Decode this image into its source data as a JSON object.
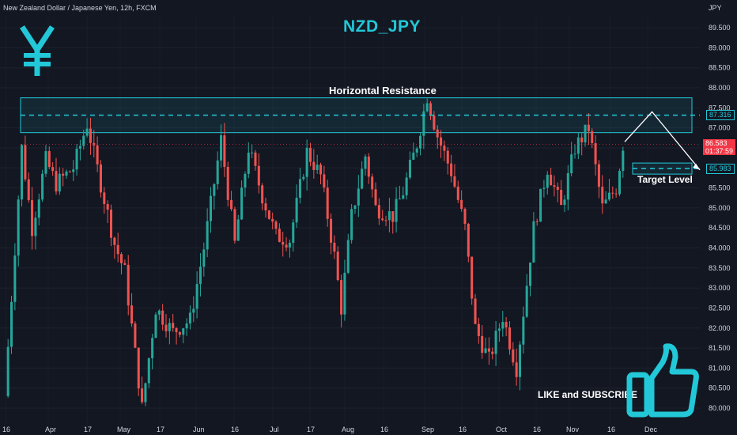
{
  "header": {
    "symbol_info": "New Zealand Dollar / Japanese Yen, 12h, FXCM",
    "currency": "JPY"
  },
  "branding": {
    "title": "NZD_JPY",
    "yen_icon": "yen-sign-icon",
    "thumb_icon": "thumbs-up-icon",
    "accent_color": "#22c8d8"
  },
  "chart_data": {
    "type": "candlestick",
    "symbol": "NZD/JPY",
    "timeframe": "12h",
    "source": "FXCM",
    "ylim": [
      79.75,
      89.75
    ],
    "y_ticks": [
      "80.000",
      "80.500",
      "81.000",
      "81.500",
      "82.000",
      "82.500",
      "83.000",
      "83.500",
      "84.000",
      "84.500",
      "85.000",
      "85.500",
      "86.000",
      "86.500",
      "87.000",
      "87.500",
      "88.000",
      "88.500",
      "89.000",
      "89.500"
    ],
    "x_ticks": [
      "16",
      "Apr",
      "17",
      "May",
      "17",
      "Jun",
      "16",
      "Jul",
      "17",
      "Aug",
      "16",
      "Sep",
      "16",
      "Oct",
      "16",
      "Nov",
      "16",
      "Dec"
    ],
    "bull_color": "#26a69a",
    "bear_color": "#ef5350",
    "price_path": [
      [
        0,
        80.3
      ],
      [
        3,
        84.0
      ],
      [
        5,
        86.5
      ],
      [
        8,
        84.5
      ],
      [
        12,
        86.2
      ],
      [
        15,
        85.6
      ],
      [
        20,
        86.0
      ],
      [
        24,
        87.1
      ],
      [
        28,
        85.6
      ],
      [
        32,
        84.1
      ],
      [
        35,
        83.4
      ],
      [
        40,
        80.0
      ],
      [
        44,
        82.5
      ],
      [
        49,
        81.9
      ],
      [
        54,
        82.2
      ],
      [
        58,
        84.0
      ],
      [
        63,
        86.7
      ],
      [
        67,
        84.1
      ],
      [
        71,
        86.5
      ],
      [
        75,
        85.3
      ],
      [
        79,
        84.3
      ],
      [
        83,
        84.2
      ],
      [
        88,
        86.4
      ],
      [
        92,
        85.8
      ],
      [
        96,
        83.8
      ],
      [
        98,
        82.5
      ],
      [
        101,
        84.8
      ],
      [
        105,
        86.3
      ],
      [
        108,
        85.0
      ],
      [
        113,
        84.8
      ],
      [
        116,
        85.4
      ],
      [
        120,
        86.6
      ],
      [
        123,
        87.8
      ],
      [
        126,
        86.8
      ],
      [
        130,
        85.9
      ],
      [
        134,
        84.5
      ],
      [
        137,
        82.0
      ],
      [
        141,
        81.2
      ],
      [
        145,
        82.3
      ],
      [
        149,
        81.0
      ],
      [
        154,
        84.5
      ],
      [
        158,
        86.0
      ],
      [
        162,
        85.0
      ],
      [
        166,
        86.5
      ],
      [
        170,
        87.0
      ],
      [
        174,
        85.0
      ],
      [
        178,
        85.5
      ],
      [
        180,
        86.58
      ]
    ],
    "price_line": {
      "value": 87.316,
      "label": "87.316"
    },
    "target_line": {
      "value": 85.983,
      "label": "85.983"
    },
    "last_price": {
      "value": 86.583,
      "label": "86.583",
      "countdown": "01:37:59"
    },
    "zones": [
      {
        "name": "Horizontal Resistance",
        "from": 86.88,
        "to": 87.75
      }
    ],
    "projection": [
      {
        "x": 180,
        "y": 86.65
      },
      {
        "x": 184,
        "y": 87.4
      },
      {
        "x": 191,
        "y": 85.95
      }
    ],
    "annotations": {
      "resistance_label": "Horizontal Resistance",
      "target_label": "Target Level",
      "cta": "LIKE and SUBSCRIBE"
    }
  }
}
